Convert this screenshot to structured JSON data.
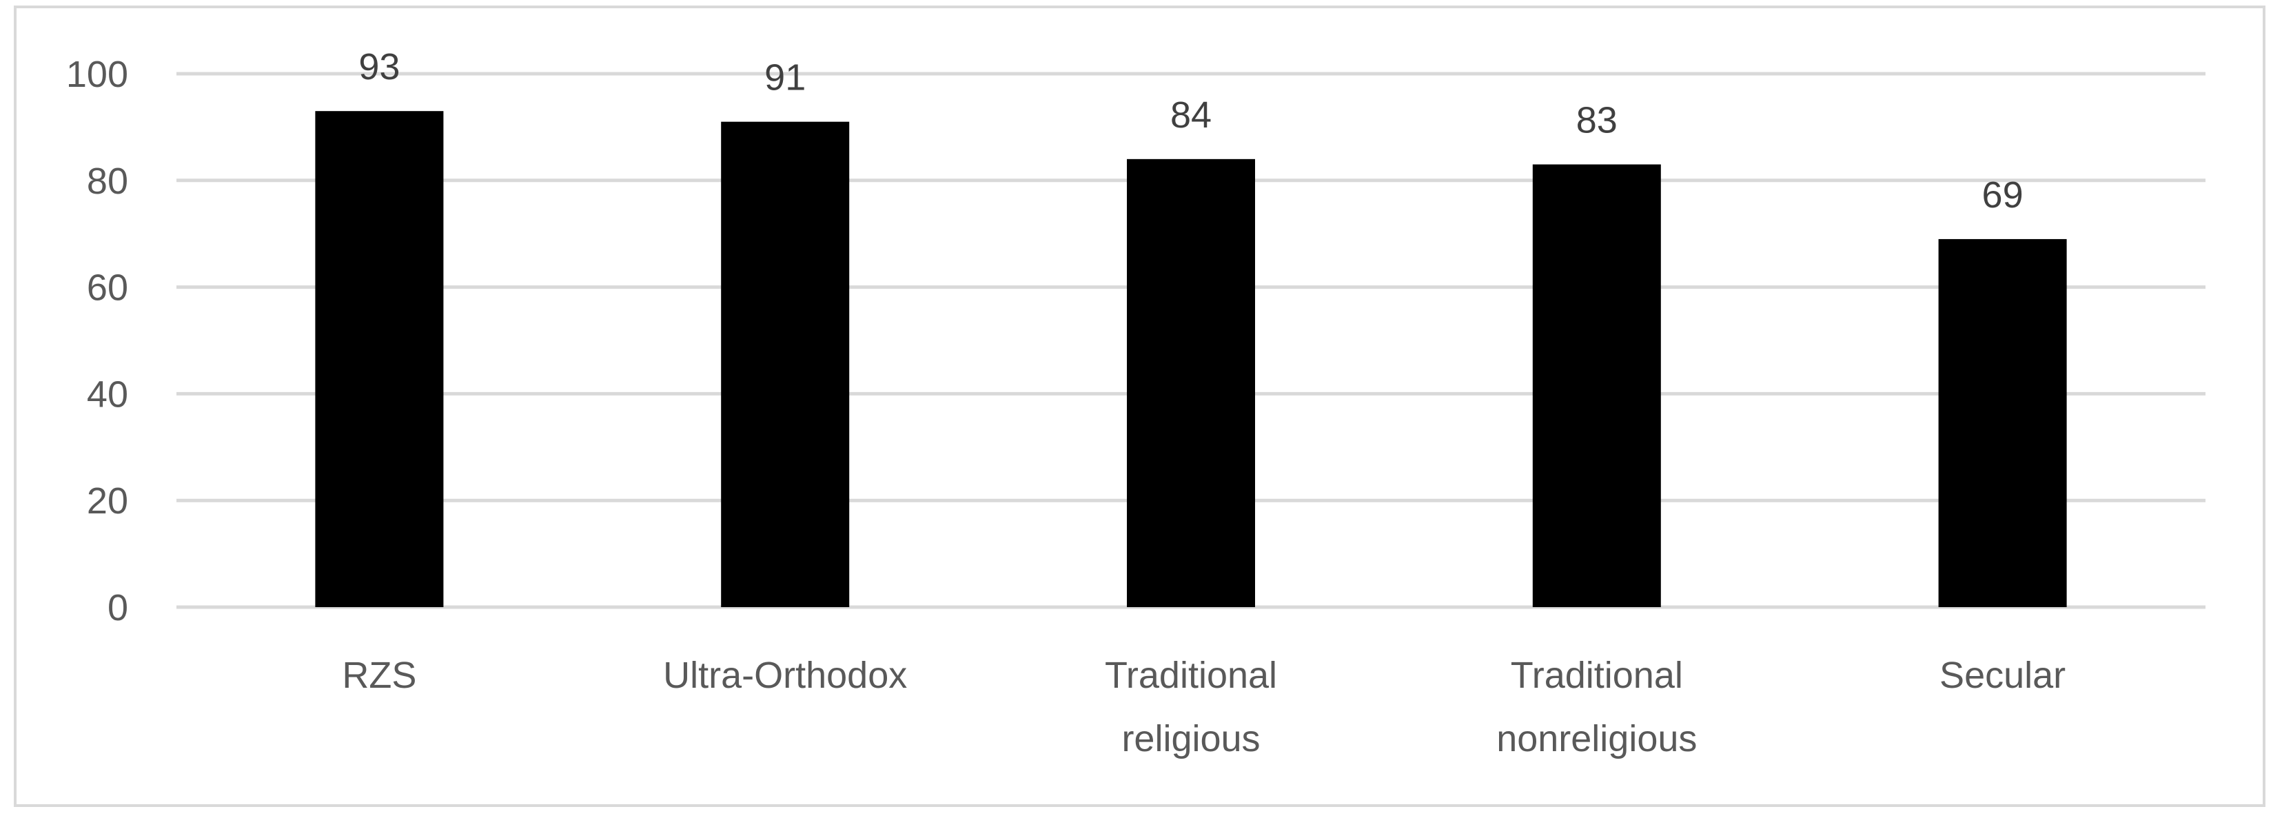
{
  "chart_data": {
    "type": "bar",
    "title": "",
    "xlabel": "",
    "ylabel": "",
    "categories": [
      [
        "RZS"
      ],
      [
        "Ultra-Orthodox"
      ],
      [
        "Traditional",
        "religious"
      ],
      [
        "Traditional",
        "nonreligious"
      ],
      [
        "Secular"
      ]
    ],
    "values": [
      93,
      91,
      84,
      83,
      69
    ],
    "ylim": [
      0,
      100
    ],
    "yticks": [
      0,
      20,
      40,
      60,
      80,
      100
    ],
    "grid": true,
    "legend": "none",
    "bar_color": "#000000",
    "grid_color": "#d9d9d9"
  }
}
